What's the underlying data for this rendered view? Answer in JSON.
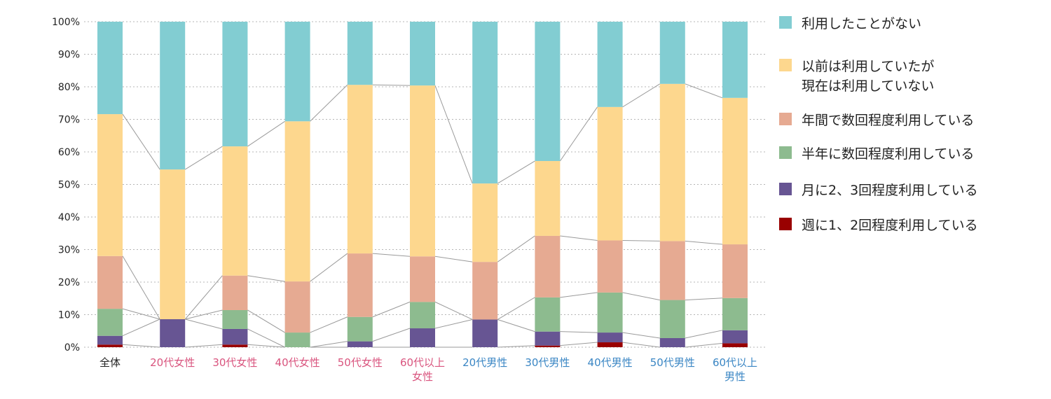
{
  "chart_data": {
    "type": "bar",
    "stacked": true,
    "ylim": [
      0,
      100
    ],
    "y_ticks": [
      "0%",
      "10%",
      "20%",
      "30%",
      "40%",
      "50%",
      "60%",
      "70%",
      "80%",
      "90%",
      "100%"
    ],
    "categories": [
      {
        "label": "全体",
        "group": "all"
      },
      {
        "label": "20代女性",
        "group": "female"
      },
      {
        "label": "30代女性",
        "group": "female"
      },
      {
        "label": "40代女性",
        "group": "female"
      },
      {
        "label": "50代女性",
        "group": "female"
      },
      {
        "label": "60代以上\n女性",
        "group": "female"
      },
      {
        "label": "20代男性",
        "group": "male"
      },
      {
        "label": "30代男性",
        "group": "male"
      },
      {
        "label": "40代男性",
        "group": "male"
      },
      {
        "label": "50代男性",
        "group": "male"
      },
      {
        "label": "60代以上\n男性",
        "group": "male"
      }
    ],
    "category_colors": {
      "all": "#222222",
      "female": "#d9547e",
      "male": "#3a86c4"
    },
    "series": [
      {
        "name": "週に1、2回程度利用している",
        "color": "#990000",
        "values": [
          0.8,
          0,
          0.8,
          0,
          0,
          0,
          0,
          0.5,
          1.5,
          0,
          1.2
        ]
      },
      {
        "name": "月に2、3回程度利用している",
        "color": "#675593",
        "values": [
          2.7,
          8.6,
          4.8,
          0,
          1.8,
          5.8,
          8.5,
          4.3,
          3.0,
          2.8,
          4.0
        ]
      },
      {
        "name": "半年に数回程度利用している",
        "color": "#8dbb8f",
        "values": [
          8.3,
          0,
          5.8,
          4.5,
          7.5,
          8.1,
          0,
          10.5,
          12.3,
          11.7,
          9.9
        ]
      },
      {
        "name": "年間で数回程度利用している",
        "color": "#e6aa92",
        "values": [
          16.2,
          0,
          10.6,
          15.7,
          19.5,
          14.0,
          17.7,
          18.9,
          16.0,
          18.1,
          16.5
        ]
      },
      {
        "name": "以前は利用していたが\n現在は利用していない",
        "color": "#fdd78e",
        "values": [
          43.6,
          46.0,
          39.7,
          49.2,
          51.8,
          52.5,
          24.1,
          23.0,
          41.0,
          48.3,
          45.0
        ]
      },
      {
        "name": "利用したことがない",
        "color": "#82cdd2",
        "values": [
          28.4,
          45.4,
          38.3,
          30.6,
          19.4,
          19.6,
          49.7,
          42.8,
          26.2,
          19.1,
          23.4
        ]
      }
    ],
    "grid": true,
    "connector_lines": true,
    "legend_position": "right"
  }
}
